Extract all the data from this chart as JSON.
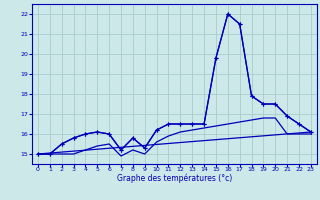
{
  "xlabel": "Graphe des températures (°c)",
  "background_color": "#cce8e8",
  "grid_color": "#aacccc",
  "line_color": "#0000bb",
  "x": [
    0,
    1,
    2,
    3,
    4,
    5,
    6,
    7,
    8,
    9,
    10,
    11,
    12,
    13,
    14,
    15,
    16,
    17,
    18,
    19,
    20,
    21,
    22,
    23
  ],
  "series_main": [
    15.0,
    15.0,
    15.5,
    15.8,
    16.0,
    16.1,
    16.0,
    15.2,
    15.8,
    15.3,
    16.2,
    16.5,
    16.5,
    16.5,
    16.5,
    19.8,
    22.0,
    21.5,
    17.9,
    17.5,
    17.5,
    16.9,
    16.5,
    16.1
  ],
  "series_avg": [
    15.0,
    15.0,
    15.5,
    15.8,
    16.0,
    16.1,
    16.0,
    15.2,
    15.8,
    15.3,
    16.2,
    16.5,
    16.5,
    16.5,
    16.5,
    19.8,
    22.0,
    21.5,
    17.9,
    17.5,
    17.5,
    16.9,
    16.5,
    16.1
  ],
  "series_trend_x": [
    0,
    23
  ],
  "series_trend_y": [
    15.0,
    16.1
  ],
  "series_min": [
    15.0,
    15.0,
    15.0,
    15.0,
    15.2,
    15.4,
    15.5,
    14.9,
    15.2,
    15.0,
    15.6,
    15.9,
    16.1,
    16.2,
    16.3,
    16.4,
    16.5,
    16.6,
    16.7,
    16.8,
    16.8,
    16.0,
    16.0,
    16.0
  ],
  "ylim": [
    14.5,
    22.5
  ],
  "xlim": [
    -0.5,
    23.5
  ],
  "yticks": [
    15,
    16,
    17,
    18,
    19,
    20,
    21,
    22
  ],
  "xticks": [
    0,
    1,
    2,
    3,
    4,
    5,
    6,
    7,
    8,
    9,
    10,
    11,
    12,
    13,
    14,
    15,
    16,
    17,
    18,
    19,
    20,
    21,
    22,
    23
  ]
}
